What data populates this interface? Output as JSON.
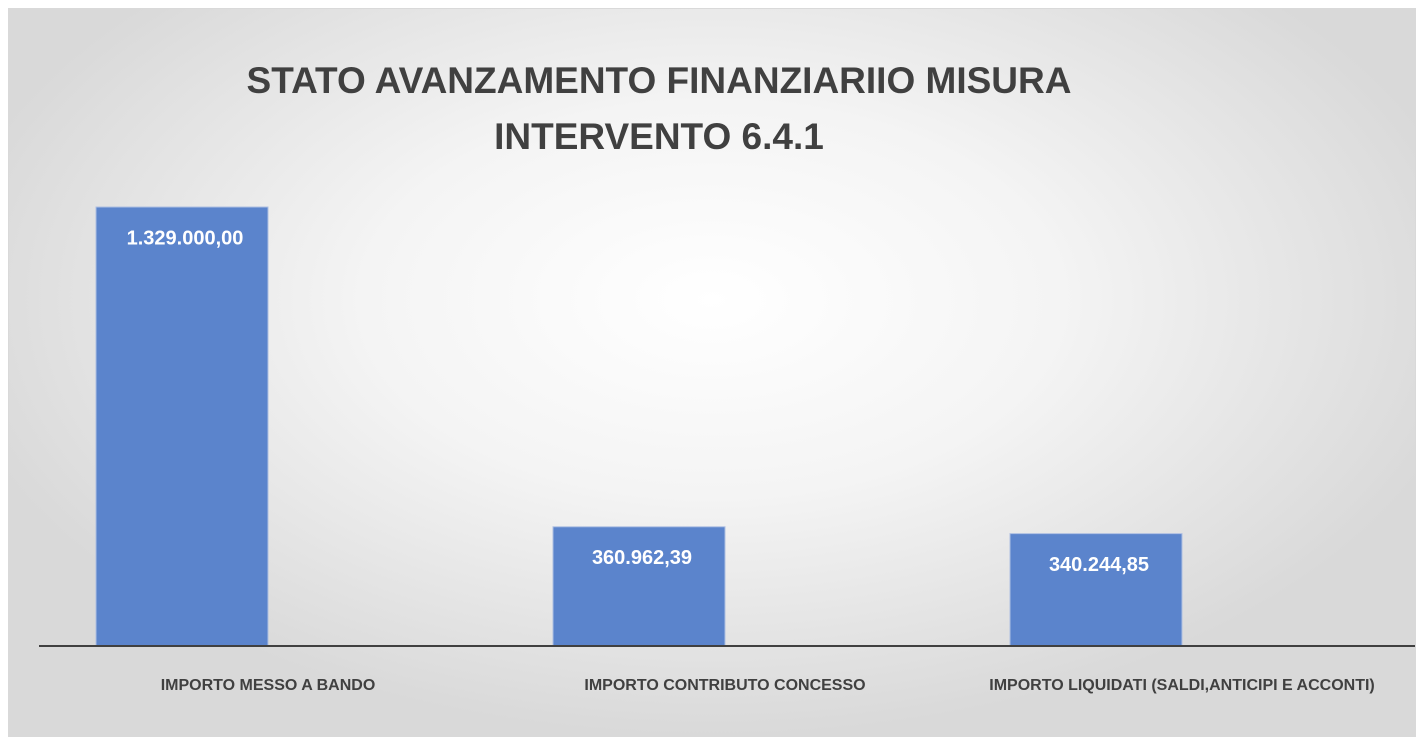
{
  "chart_data": {
    "type": "bar",
    "title": "STATO AVANZAMENTO FINANZIARIIO MISURA INTERVENTO 6.4.1",
    "categories": [
      "IMPORTO MESSO A BANDO",
      "IMPORTO CONTRIBUTO CONCESSO",
      "IMPORTO LIQUIDATI (SALDI,ANTICIPI E ACCONTI)"
    ],
    "values": [
      1329000.0,
      360962.39,
      340244.85
    ],
    "value_labels": [
      "1.329.000,00",
      "360.962,39",
      "340.244,85"
    ],
    "color": "#5b84cc"
  }
}
